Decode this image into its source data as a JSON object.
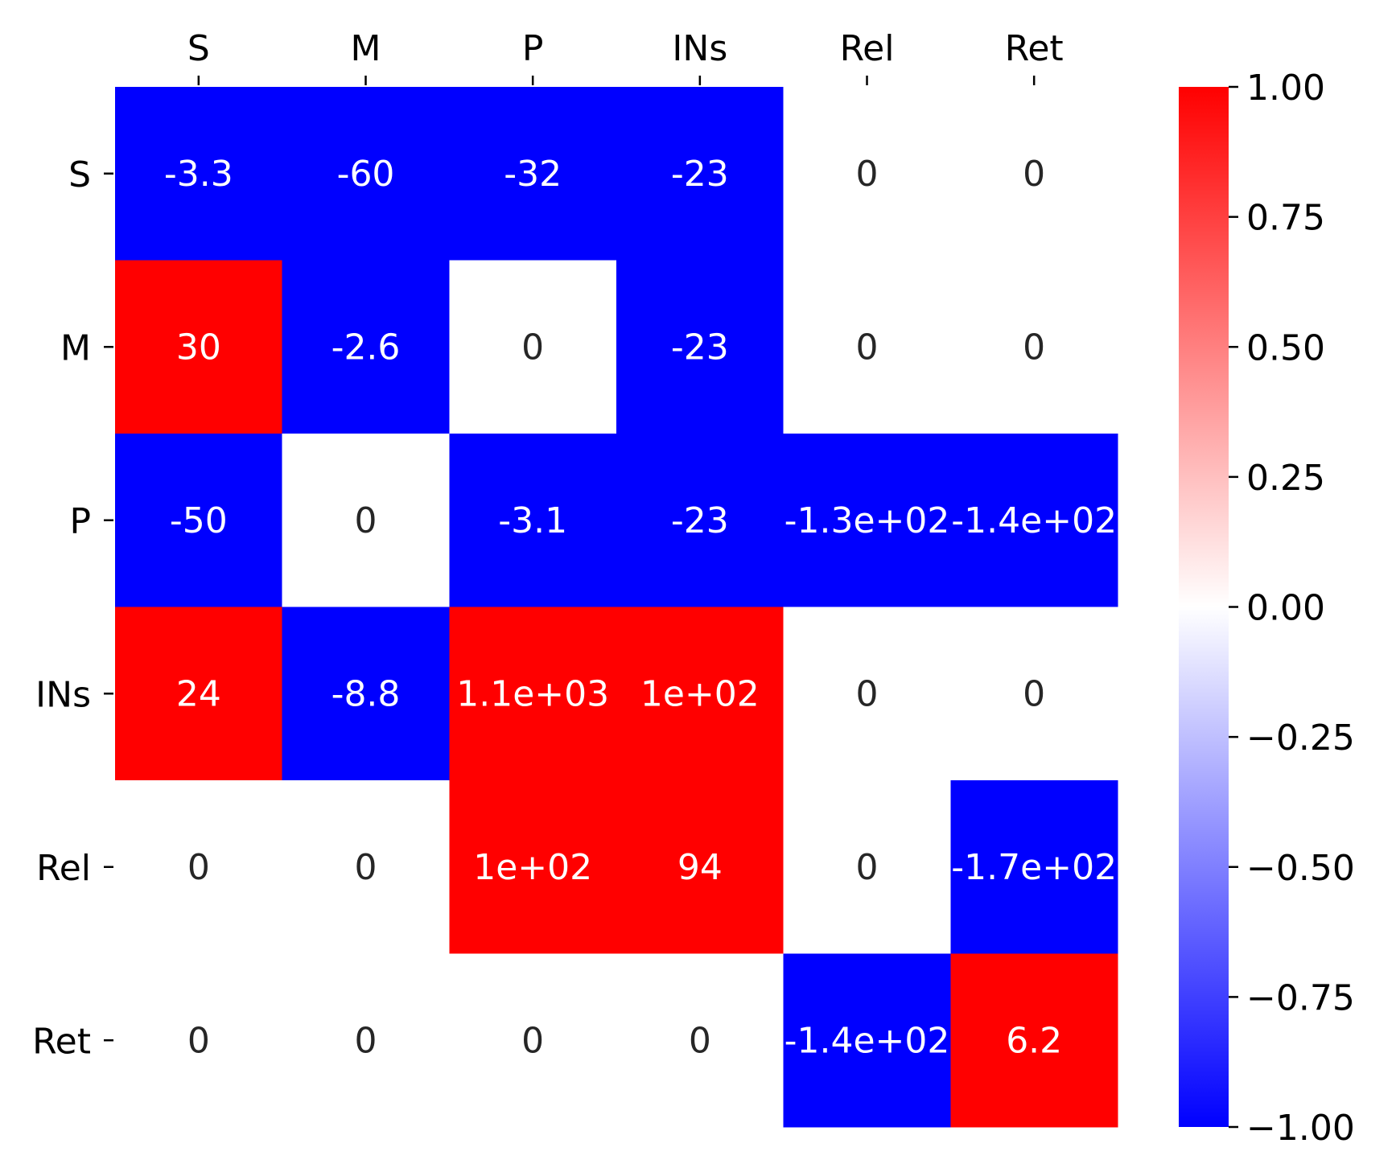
{
  "chart_data": {
    "type": "heatmap",
    "x_labels": [
      "S",
      "M",
      "P",
      "INs",
      "Rel",
      "Ret"
    ],
    "y_labels": [
      "S",
      "M",
      "P",
      "INs",
      "Rel",
      "Ret"
    ],
    "values": [
      [
        -3.3,
        -60,
        -32,
        -23,
        0,
        0
      ],
      [
        30,
        -2.6,
        0,
        -23,
        0,
        0
      ],
      [
        -50,
        0,
        -3.1,
        -23,
        -130,
        -140
      ],
      [
        24,
        -8.8,
        1100,
        100,
        0,
        0
      ],
      [
        0,
        0,
        100,
        94,
        0,
        -170
      ],
      [
        0,
        0,
        0,
        0,
        -140,
        6.2
      ]
    ],
    "annotations": [
      [
        "-3.3",
        "-60",
        "-32",
        "-23",
        "0",
        "0"
      ],
      [
        "30",
        "-2.6",
        "0",
        "-23",
        "0",
        "0"
      ],
      [
        "-50",
        "0",
        "-3.1",
        "-23",
        "-1.3e+02",
        "-1.4e+02"
      ],
      [
        "24",
        "-8.8",
        "1.1e+03",
        "1e+02",
        "0",
        "0"
      ],
      [
        "0",
        "0",
        "1e+02",
        "94",
        "0",
        "-1.7e+02"
      ],
      [
        "0",
        "0",
        "0",
        "0",
        "-1.4e+02",
        "6.2"
      ]
    ],
    "colormap": {
      "vmin": -1.0,
      "vmax": 1.0,
      "low_color": "#0000ff",
      "mid_color": "#ffffff",
      "high_color": "#ff0000"
    },
    "colorbar": {
      "ticks": [
        1.0,
        0.75,
        0.5,
        0.25,
        0.0,
        -0.25,
        -0.5,
        -0.75,
        -1.0
      ],
      "tick_labels": [
        "1.00",
        "0.75",
        "0.50",
        "0.25",
        "0.00",
        "−0.25",
        "−0.50",
        "−0.75",
        "−1.00"
      ]
    },
    "x_axis_position": "top",
    "annotation_text_colors": {
      "on_saturated": "#ffffff",
      "on_neutral": "#262626"
    },
    "grid": false
  }
}
